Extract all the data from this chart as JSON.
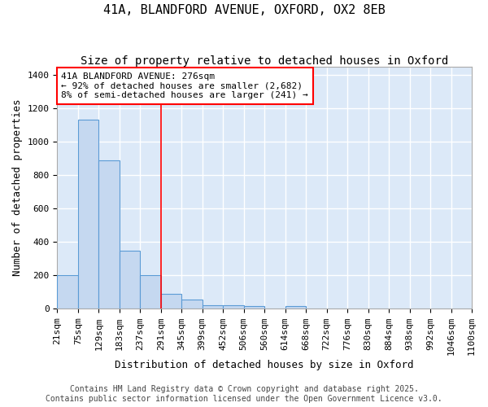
{
  "title1": "41A, BLANDFORD AVENUE, OXFORD, OX2 8EB",
  "title2": "Size of property relative to detached houses in Oxford",
  "xlabel": "Distribution of detached houses by size in Oxford",
  "ylabel": "Number of detached properties",
  "bin_labels": [
    "21sqm",
    "75sqm",
    "129sqm",
    "183sqm",
    "237sqm",
    "291sqm",
    "345sqm",
    "399sqm",
    "452sqm",
    "506sqm",
    "560sqm",
    "614sqm",
    "668sqm",
    "722sqm",
    "776sqm",
    "830sqm",
    "884sqm",
    "938sqm",
    "992sqm",
    "1046sqm",
    "1100sqm"
  ],
  "bar_heights": [
    200,
    1130,
    890,
    350,
    200,
    90,
    55,
    20,
    20,
    15,
    0,
    15,
    0,
    0,
    0,
    0,
    0,
    0,
    0,
    0
  ],
  "bar_color": "#c5d8f0",
  "bar_edge_color": "#5b9bd5",
  "ylim": [
    0,
    1450
  ],
  "yticks": [
    0,
    200,
    400,
    600,
    800,
    1000,
    1200,
    1400
  ],
  "red_line_bin_index": 5,
  "annotation_text": "41A BLANDFORD AVENUE: 276sqm\n← 92% of detached houses are smaller (2,682)\n8% of semi-detached houses are larger (241) →",
  "footer1": "Contains HM Land Registry data © Crown copyright and database right 2025.",
  "footer2": "Contains public sector information licensed under the Open Government Licence v3.0.",
  "fig_background_color": "#ffffff",
  "plot_background_color": "#dce9f8",
  "grid_color": "#ffffff",
  "title1_fontsize": 11,
  "title2_fontsize": 10,
  "xlabel_fontsize": 9,
  "ylabel_fontsize": 9,
  "tick_fontsize": 8,
  "annotation_fontsize": 8,
  "footer_fontsize": 7
}
